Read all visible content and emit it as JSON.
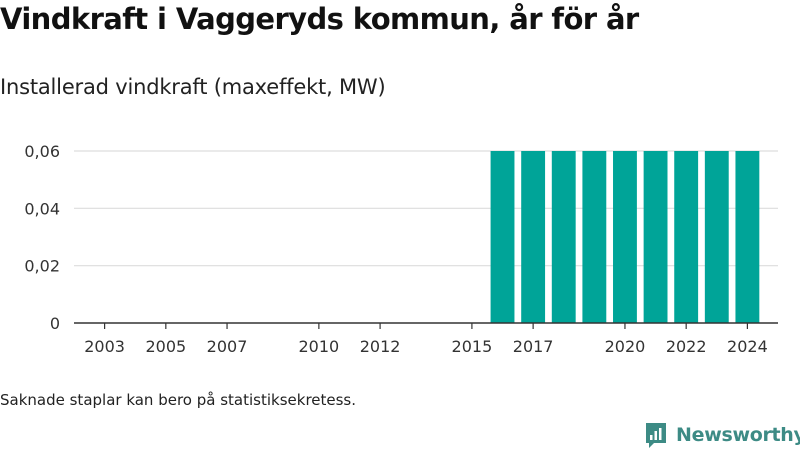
{
  "header": {
    "title": "Vindkraft i Vaggeryds kommun, år för år",
    "subtitle": "Installerad vindkraft (maxeffekt, MW)"
  },
  "footer": {
    "note": "Saknade staplar kan bero på statistiksekretess.",
    "brand": "Newsworthy",
    "brand_icon": "newsworthy-logo-icon"
  },
  "colors": {
    "bar": "#00a498",
    "grid": "#dddddd",
    "axis": "#333333"
  },
  "chart_data": {
    "type": "bar",
    "title": "Vindkraft i Vaggeryds kommun, år för år",
    "subtitle": "Installerad vindkraft (maxeffekt, MW)",
    "xlabel": "",
    "ylabel": "",
    "x_range": [
      2002,
      2025
    ],
    "ylim": [
      0,
      0.06
    ],
    "y_ticks": [
      0,
      0.02,
      0.04,
      0.06
    ],
    "y_tick_labels": [
      "0",
      "0,02",
      "0,04",
      "0,06"
    ],
    "x_ticks": [
      2003,
      2005,
      2007,
      2010,
      2012,
      2015,
      2017,
      2020,
      2022,
      2024
    ],
    "x_tick_labels": [
      "2003",
      "2005",
      "2007",
      "2010",
      "2012",
      "2015",
      "2017",
      "2020",
      "2022",
      "2024"
    ],
    "categories": [
      2016,
      2017,
      2018,
      2019,
      2020,
      2021,
      2022,
      2023,
      2024
    ],
    "values": [
      0.06,
      0.06,
      0.06,
      0.06,
      0.06,
      0.06,
      0.06,
      0.06,
      0.06
    ],
    "grid": true,
    "legend": "none"
  }
}
